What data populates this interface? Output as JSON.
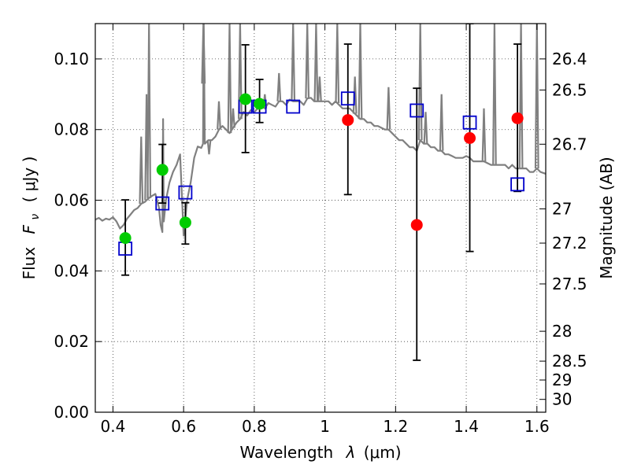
{
  "chart_data": {
    "type": "scatter",
    "title": "",
    "xlabel": "Wavelength",
    "xlabel_symbol": "λ",
    "xlabel_unit": "(μm)",
    "ylabel": "Flux",
    "ylabel_symbol": "F",
    "ylabel_subscript": "ν",
    "ylabel_unit": "( μJy )",
    "ylabel_right": "Magnitude (AB)",
    "xlim": [
      0.35,
      1.625
    ],
    "ylim": [
      0.0,
      0.11
    ],
    "x_ticks": [
      0.4,
      0.6,
      0.8,
      1.0,
      1.2,
      1.4,
      1.6
    ],
    "x_tick_labels": [
      "0.4",
      "0.6",
      "0.8",
      "1",
      "1.2",
      "1.4",
      "1.6"
    ],
    "y_ticks": [
      0.0,
      0.02,
      0.04,
      0.06,
      0.08,
      0.1
    ],
    "y_tick_labels": [
      "0.00",
      "0.02",
      "0.04",
      "0.06",
      "0.08",
      "0.10"
    ],
    "right_ticks": [
      {
        "label": "26.4",
        "value": 26.4
      },
      {
        "label": "26.5",
        "value": 26.5
      },
      {
        "label": "26.7",
        "value": 26.7
      },
      {
        "label": "27",
        "value": 27.0
      },
      {
        "label": "27.2",
        "value": 27.2
      },
      {
        "label": "27.5",
        "value": 27.5
      },
      {
        "label": "28",
        "value": 28.0
      },
      {
        "label": "28.5",
        "value": 28.5
      },
      {
        "label": "29",
        "value": 29.0
      },
      {
        "label": "30",
        "value": 30.0
      }
    ],
    "grid": true,
    "colors": {
      "model": "#808080",
      "observed_green": "#00cc00",
      "observed_red": "#ff0000",
      "model_bands": "#0000cc",
      "error_bar": "#000000"
    },
    "series": [
      {
        "name": "observed-green",
        "marker": "circle",
        "x": [
          0.435,
          0.54,
          0.605,
          0.775,
          0.815
        ],
        "y": [
          0.0493,
          0.0686,
          0.0537,
          0.0886,
          0.0873
        ],
        "yerr_low": [
          0.0388,
          0.0592,
          0.0476,
          0.0735,
          0.082
        ],
        "yerr_high": [
          0.0601,
          0.0758,
          0.0593,
          0.104,
          0.0942
        ]
      },
      {
        "name": "observed-red",
        "marker": "circle",
        "x": [
          1.065,
          1.26,
          1.41,
          1.545
        ],
        "y": [
          0.0827,
          0.053,
          0.0776,
          0.0832
        ],
        "yerr_low": [
          0.0616,
          0.0147,
          0.0455,
          0.0625
        ],
        "yerr_high": [
          0.1042,
          0.0917,
          0.11,
          0.1042
        ]
      },
      {
        "name": "model-band-flux",
        "marker": "square",
        "x": [
          0.435,
          0.54,
          0.605,
          0.775,
          0.815,
          0.91,
          1.065,
          1.26,
          1.41,
          1.545
        ],
        "y": [
          0.0463,
          0.0591,
          0.0622,
          0.0865,
          0.0865,
          0.0865,
          0.0888,
          0.0854,
          0.082,
          0.0645
        ]
      }
    ],
    "model_spectrum": {
      "name": "model-spectrum",
      "x": [
        0.35,
        0.36,
        0.37,
        0.38,
        0.39,
        0.4,
        0.41,
        0.42,
        0.43,
        0.44,
        0.45,
        0.46,
        0.47,
        0.48,
        0.49,
        0.5,
        0.51,
        0.52,
        0.53,
        0.535,
        0.54,
        0.542,
        0.544,
        0.55,
        0.56,
        0.57,
        0.58,
        0.59,
        0.6,
        0.61,
        0.62,
        0.63,
        0.64,
        0.65,
        0.655,
        0.657,
        0.66,
        0.67,
        0.68,
        0.69,
        0.7,
        0.71,
        0.72,
        0.73,
        0.74,
        0.75,
        0.76,
        0.77,
        0.78,
        0.79,
        0.8,
        0.81,
        0.82,
        0.83,
        0.84,
        0.85,
        0.86,
        0.87,
        0.88,
        0.89,
        0.9,
        0.91,
        0.92,
        0.93,
        0.94,
        0.95,
        0.96,
        0.97,
        0.98,
        0.99,
        1.0,
        1.01,
        1.02,
        1.03,
        1.04,
        1.05,
        1.06,
        1.07,
        1.08,
        1.09,
        1.1,
        1.11,
        1.12,
        1.13,
        1.14,
        1.15,
        1.16,
        1.17,
        1.18,
        1.19,
        1.2,
        1.21,
        1.22,
        1.23,
        1.24,
        1.25,
        1.26,
        1.27,
        1.28,
        1.29,
        1.3,
        1.31,
        1.32,
        1.33,
        1.34,
        1.35,
        1.36,
        1.37,
        1.38,
        1.39,
        1.4,
        1.41,
        1.42,
        1.43,
        1.44,
        1.45,
        1.46,
        1.47,
        1.48,
        1.49,
        1.5,
        1.51,
        1.52,
        1.53,
        1.54,
        1.55,
        1.56,
        1.57,
        1.58,
        1.59,
        1.6,
        1.61,
        1.625
      ],
      "y": [
        0.0545,
        0.055,
        0.0542,
        0.0548,
        0.0545,
        0.0552,
        0.054,
        0.052,
        0.053,
        0.0548,
        0.056,
        0.0572,
        0.0578,
        0.059,
        0.0595,
        0.0605,
        0.0612,
        0.0618,
        0.058,
        0.053,
        0.051,
        0.083,
        0.054,
        0.06,
        0.065,
        0.068,
        0.07,
        0.073,
        0.05,
        0.06,
        0.065,
        0.072,
        0.0752,
        0.0748,
        0.076,
        0.11,
        0.076,
        0.077,
        0.077,
        0.078,
        0.08,
        0.081,
        0.08,
        0.079,
        0.0805,
        0.082,
        0.083,
        0.085,
        0.084,
        0.0855,
        0.085,
        0.086,
        0.087,
        0.086,
        0.0875,
        0.087,
        0.0865,
        0.088,
        0.088,
        0.087,
        0.0885,
        0.088,
        0.088,
        0.088,
        0.087,
        0.0888,
        0.089,
        0.088,
        0.088,
        0.088,
        0.088,
        0.088,
        0.087,
        0.088,
        0.087,
        0.086,
        0.086,
        0.086,
        0.085,
        0.084,
        0.083,
        0.083,
        0.082,
        0.082,
        0.081,
        0.081,
        0.0805,
        0.08,
        0.08,
        0.079,
        0.078,
        0.077,
        0.077,
        0.076,
        0.075,
        0.075,
        0.074,
        0.077,
        0.076,
        0.076,
        0.075,
        0.075,
        0.074,
        0.074,
        0.073,
        0.073,
        0.0725,
        0.072,
        0.072,
        0.072,
        0.0725,
        0.072,
        0.071,
        0.071,
        0.071,
        0.071,
        0.0705,
        0.07,
        0.07,
        0.07,
        0.07,
        0.07,
        0.069,
        0.07,
        0.069,
        0.069,
        0.069,
        0.069,
        0.068,
        0.068,
        0.069,
        0.068,
        0.0675
      ]
    },
    "emission_spikes": [
      {
        "x": 0.48,
        "y": 0.078
      },
      {
        "x": 0.495,
        "y": 0.09
      },
      {
        "x": 0.502,
        "y": 0.11
      },
      {
        "x": 0.656,
        "y": 0.11
      },
      {
        "x": 0.672,
        "y": 0.073
      },
      {
        "x": 0.7,
        "y": 0.088
      },
      {
        "x": 0.73,
        "y": 0.11
      },
      {
        "x": 0.74,
        "y": 0.086
      },
      {
        "x": 0.76,
        "y": 0.11
      },
      {
        "x": 0.83,
        "y": 0.09
      },
      {
        "x": 0.87,
        "y": 0.096
      },
      {
        "x": 0.91,
        "y": 0.11
      },
      {
        "x": 0.95,
        "y": 0.11
      },
      {
        "x": 0.975,
        "y": 0.11
      },
      {
        "x": 0.985,
        "y": 0.095
      },
      {
        "x": 1.035,
        "y": 0.11
      },
      {
        "x": 1.085,
        "y": 0.095
      },
      {
        "x": 1.1,
        "y": 0.11
      },
      {
        "x": 1.18,
        "y": 0.092
      },
      {
        "x": 1.27,
        "y": 0.11
      },
      {
        "x": 1.285,
        "y": 0.085
      },
      {
        "x": 1.33,
        "y": 0.09
      },
      {
        "x": 1.45,
        "y": 0.086
      },
      {
        "x": 1.48,
        "y": 0.11
      },
      {
        "x": 1.555,
        "y": 0.11
      },
      {
        "x": 1.6,
        "y": 0.11
      }
    ]
  }
}
